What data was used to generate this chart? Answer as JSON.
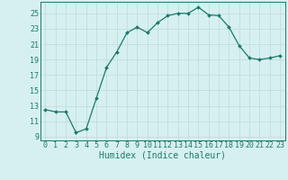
{
  "x": [
    0,
    1,
    2,
    3,
    4,
    5,
    6,
    7,
    8,
    9,
    10,
    11,
    12,
    13,
    14,
    15,
    16,
    17,
    18,
    19,
    20,
    21,
    22,
    23
  ],
  "y": [
    12.5,
    12.2,
    12.2,
    9.5,
    10.0,
    14.0,
    18.0,
    20.0,
    22.5,
    23.2,
    22.5,
    23.8,
    24.7,
    25.0,
    25.0,
    25.8,
    24.8,
    24.7,
    23.2,
    20.8,
    19.2,
    19.0,
    19.2,
    19.5
  ],
  "line_color": "#1a7a6a",
  "marker_color": "#1a7a6a",
  "bg_color": "#d6f0ef",
  "grid_color": "#c0dede",
  "xlabel": "Humidex (Indice chaleur)",
  "xlim": [
    -0.5,
    23.5
  ],
  "ylim": [
    8.5,
    26.5
  ],
  "yticks": [
    9,
    11,
    13,
    15,
    17,
    19,
    21,
    23,
    25
  ],
  "xtick_labels": [
    "0",
    "1",
    "2",
    "3",
    "4",
    "5",
    "6",
    "7",
    "8",
    "9",
    "10",
    "11",
    "12",
    "13",
    "14",
    "15",
    "16",
    "17",
    "18",
    "19",
    "20",
    "21",
    "22",
    "23"
  ],
  "label_fontsize": 7,
  "tick_fontsize": 6
}
